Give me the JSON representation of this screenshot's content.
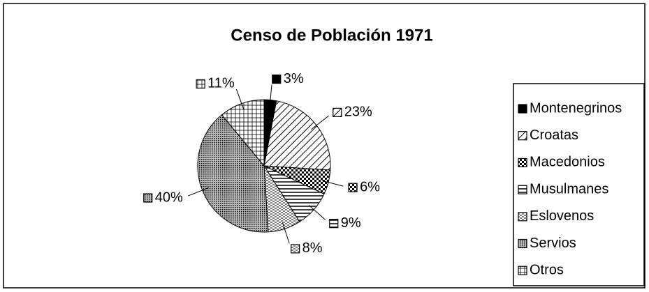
{
  "chart_data": {
    "type": "pie",
    "title": "Censo de Población 1971",
    "categories": [
      "Montenegrinos",
      "Croatas",
      "Macedonios",
      "Musulmanes",
      "Eslovenos",
      "Servios",
      "Otros"
    ],
    "values": [
      3,
      23,
      6,
      9,
      8,
      40,
      11
    ],
    "value_labels": [
      "3%",
      "23%",
      "6%",
      "9%",
      "8%",
      "40%",
      "11%"
    ],
    "colors": [
      "#000000",
      "#000000",
      "#000000",
      "#000000",
      "#000000",
      "#000000",
      "#000000"
    ],
    "legend": "right"
  }
}
